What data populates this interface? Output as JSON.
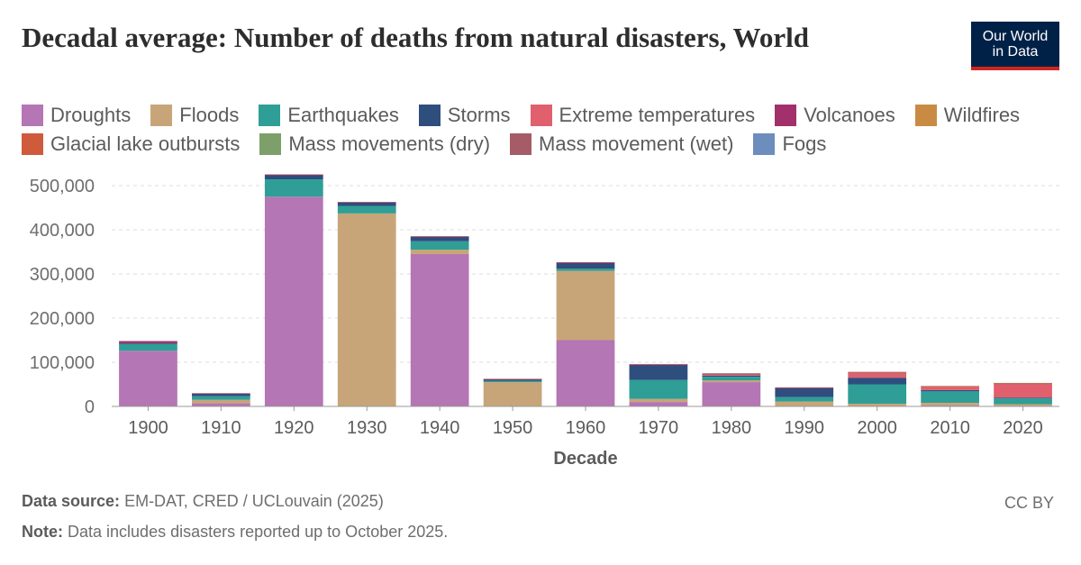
{
  "title": "Decadal average: Number of deaths from natural disasters, World",
  "logo": {
    "line1": "Our World",
    "line2": "in Data"
  },
  "footer": {
    "source_label": "Data source:",
    "source_text": "EM-DAT, CRED / UCLouvain (2025)",
    "note_label": "Note:",
    "note_text": "Data includes disasters reported up to October 2025.",
    "license": "CC BY"
  },
  "chart_data": {
    "type": "bar",
    "stacked": true,
    "xlabel": "Decade",
    "ylabel": "",
    "ylim": [
      0,
      500000
    ],
    "yticks": [
      0,
      100000,
      200000,
      300000,
      400000,
      500000
    ],
    "ytick_labels": [
      "0",
      "100,000",
      "200,000",
      "300,000",
      "400,000",
      "500,000"
    ],
    "grid": true,
    "legend_position": "top",
    "categories": [
      "1900",
      "1910",
      "1920",
      "1930",
      "1940",
      "1950",
      "1960",
      "1970",
      "1980",
      "1990",
      "2000",
      "2010",
      "2020"
    ],
    "series": [
      {
        "name": "Droughts",
        "color": "#b476b4",
        "values": [
          126000,
          7000,
          475000,
          0,
          345000,
          0,
          150000,
          10000,
          55000,
          1000,
          1000,
          2000,
          0
        ]
      },
      {
        "name": "Floods",
        "color": "#c8a578",
        "values": [
          0,
          8000,
          0,
          437000,
          10000,
          55000,
          157000,
          7000,
          4000,
          10000,
          5000,
          6000,
          5000
        ]
      },
      {
        "name": "Earthquakes",
        "color": "#2f9e96",
        "values": [
          16000,
          8000,
          39000,
          17000,
          19000,
          3000,
          5000,
          43000,
          8000,
          10000,
          44000,
          26000,
          13000
        ]
      },
      {
        "name": "Storms",
        "color": "#2e4e7e",
        "values": [
          1000,
          6000,
          10000,
          8000,
          10000,
          3000,
          13000,
          34000,
          3000,
          20000,
          15000,
          3000,
          2000
        ]
      },
      {
        "name": "Extreme temperatures",
        "color": "#e0606e",
        "values": [
          0,
          0,
          0,
          0,
          0,
          0,
          0,
          0,
          1000,
          1000,
          12000,
          8000,
          32000
        ]
      },
      {
        "name": "Volcanoes",
        "color": "#a2306a",
        "values": [
          5000,
          500,
          500,
          500,
          500,
          500,
          500,
          500,
          2500,
          100,
          100,
          100,
          100
        ]
      },
      {
        "name": "Wildfires",
        "color": "#c98b43",
        "values": [
          0,
          0,
          0,
          0,
          0,
          0,
          0,
          0,
          100,
          0,
          100,
          100,
          100
        ]
      },
      {
        "name": "Glacial lake outbursts",
        "color": "#cf5b3c",
        "values": [
          0,
          0,
          0,
          0,
          0,
          0,
          0,
          0,
          0,
          0,
          0,
          0,
          0
        ]
      },
      {
        "name": "Mass movements (dry)",
        "color": "#7da06a",
        "values": [
          0,
          0,
          0,
          0,
          0,
          0,
          0,
          0,
          0,
          0,
          0,
          0,
          0
        ]
      },
      {
        "name": "Mass movement (wet)",
        "color": "#a55c67",
        "values": [
          0,
          500,
          1000,
          500,
          1000,
          1000,
          1000,
          1500,
          1500,
          1000,
          1000,
          1000,
          1000
        ]
      },
      {
        "name": "Fogs",
        "color": "#6d8dbd",
        "values": [
          0,
          0,
          0,
          0,
          0,
          0,
          0,
          0,
          0,
          0,
          0,
          0,
          0
        ]
      }
    ]
  }
}
